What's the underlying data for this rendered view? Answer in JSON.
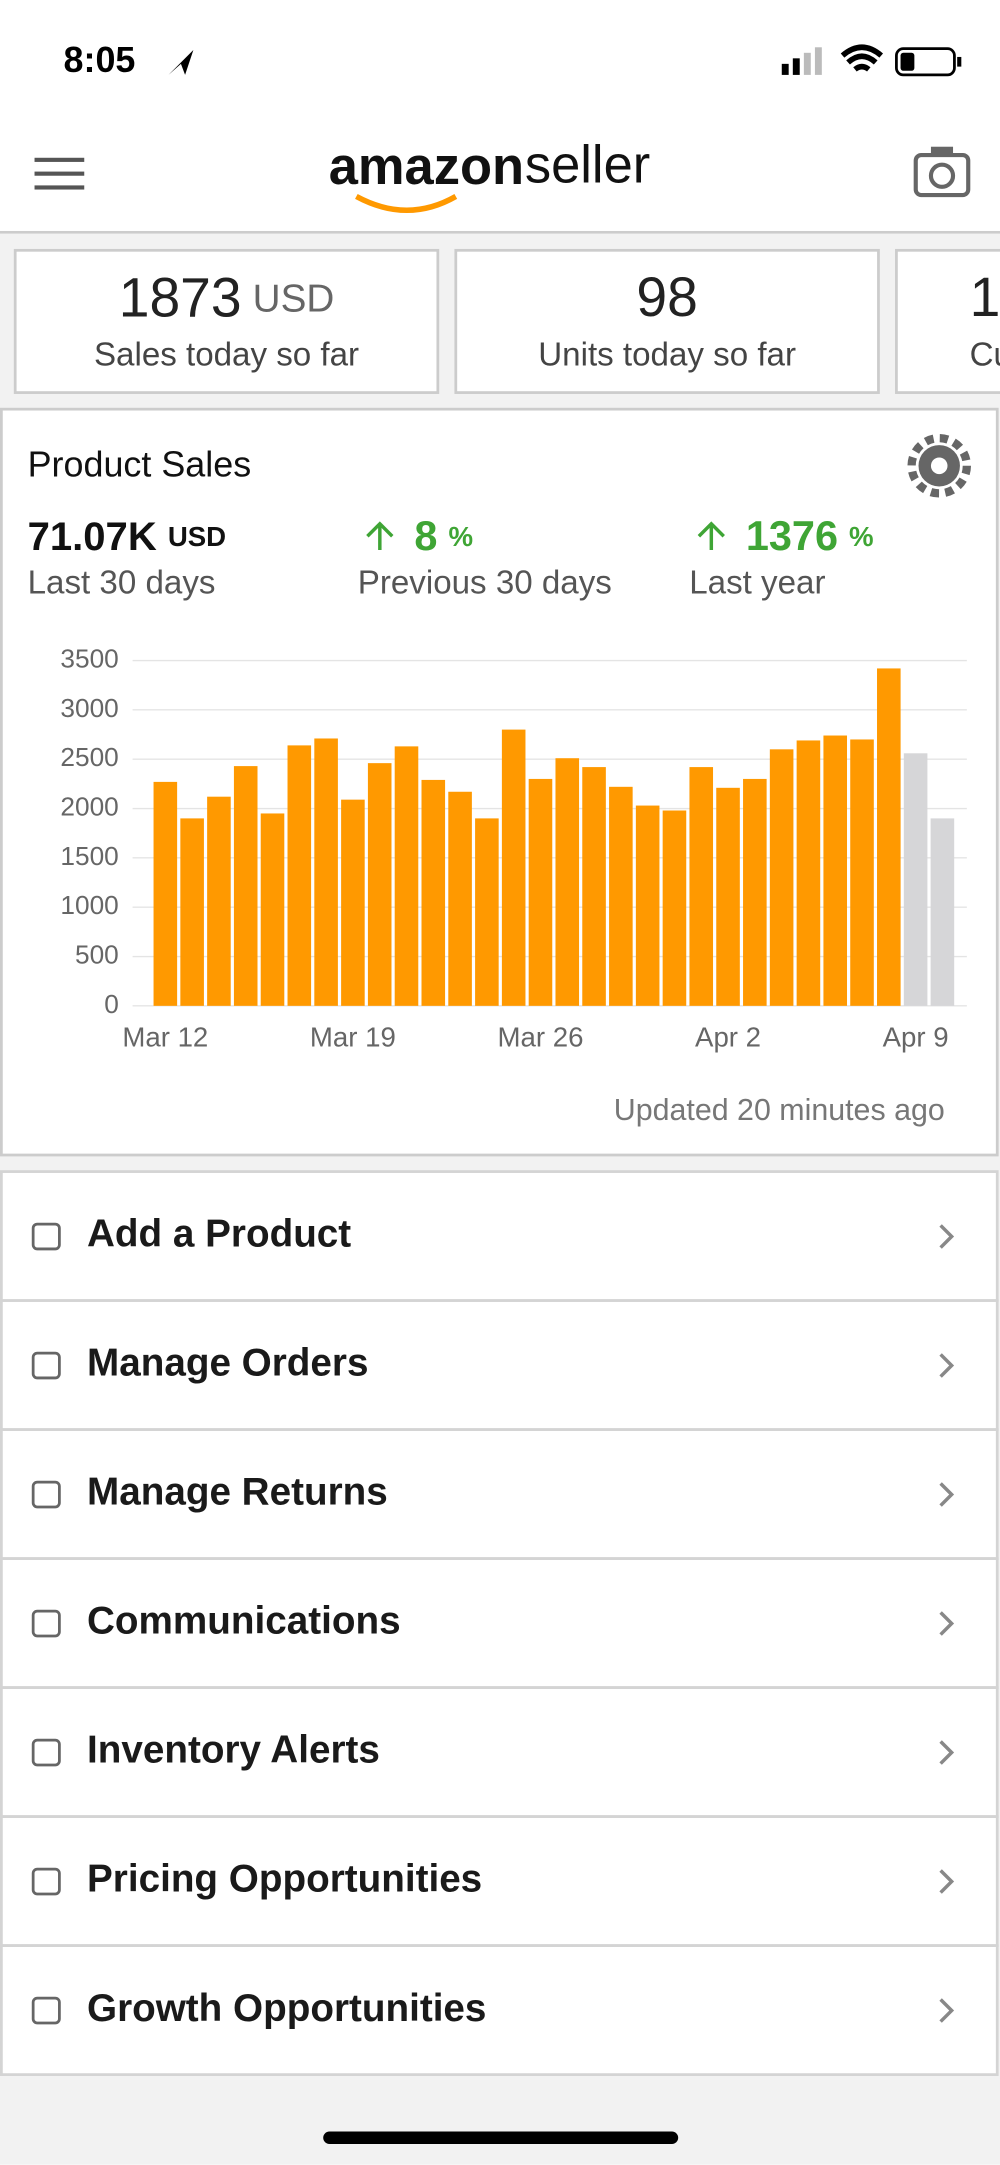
{
  "status": {
    "time": "8:05"
  },
  "header": {
    "brand": "amazon",
    "product": "seller"
  },
  "cards": [
    {
      "value": "1873",
      "unit": "USD",
      "label": "Sales today so far"
    },
    {
      "value": "98",
      "label": "Units today so far"
    },
    {
      "value": "1",
      "label": "Cu"
    }
  ],
  "product_sales": {
    "title": "Product Sales",
    "total": "71.07K",
    "total_unit": "USD",
    "total_label": "Last 30 days",
    "previous": "8",
    "previous_unit": "%",
    "previous_label": "Previous 30 days",
    "year": "1376",
    "year_unit": "%",
    "year_label": "Last year",
    "updated": "Updated 20 minutes ago"
  },
  "chart_data": {
    "type": "bar",
    "categories": [
      "Mar 12",
      null,
      null,
      null,
      null,
      null,
      null,
      "Mar 19",
      null,
      null,
      null,
      null,
      null,
      null,
      "Mar 26",
      null,
      null,
      null,
      null,
      null,
      null,
      "Apr 2",
      null,
      null,
      null,
      null,
      null,
      null,
      "Apr 9",
      null
    ],
    "values": [
      2270,
      1900,
      2120,
      2430,
      1950,
      2640,
      2710,
      2090,
      2460,
      2630,
      2290,
      2170,
      1900,
      2800,
      2300,
      2510,
      2420,
      2220,
      2030,
      1980,
      2420,
      2210,
      2300,
      2600,
      2690,
      2740,
      2700,
      3420,
      2560,
      1900
    ],
    "colors": [
      "#ff9900",
      "#ff9900",
      "#ff9900",
      "#ff9900",
      "#ff9900",
      "#ff9900",
      "#ff9900",
      "#ff9900",
      "#ff9900",
      "#ff9900",
      "#ff9900",
      "#ff9900",
      "#ff9900",
      "#ff9900",
      "#ff9900",
      "#ff9900",
      "#ff9900",
      "#ff9900",
      "#ff9900",
      "#ff9900",
      "#ff9900",
      "#ff9900",
      "#ff9900",
      "#ff9900",
      "#ff9900",
      "#ff9900",
      "#ff9900",
      "#ff9900",
      "#d6d6d8",
      "#d6d6d8"
    ],
    "ylim": [
      0,
      3500
    ],
    "yticks": [
      0,
      500,
      1000,
      1500,
      2000,
      2500,
      3000,
      3500
    ],
    "grid": true
  },
  "menu": [
    "Add a Product",
    "Manage Orders",
    "Manage Returns",
    "Communications",
    "Inventory Alerts",
    "Pricing Opportunities",
    "Growth Opportunities"
  ]
}
